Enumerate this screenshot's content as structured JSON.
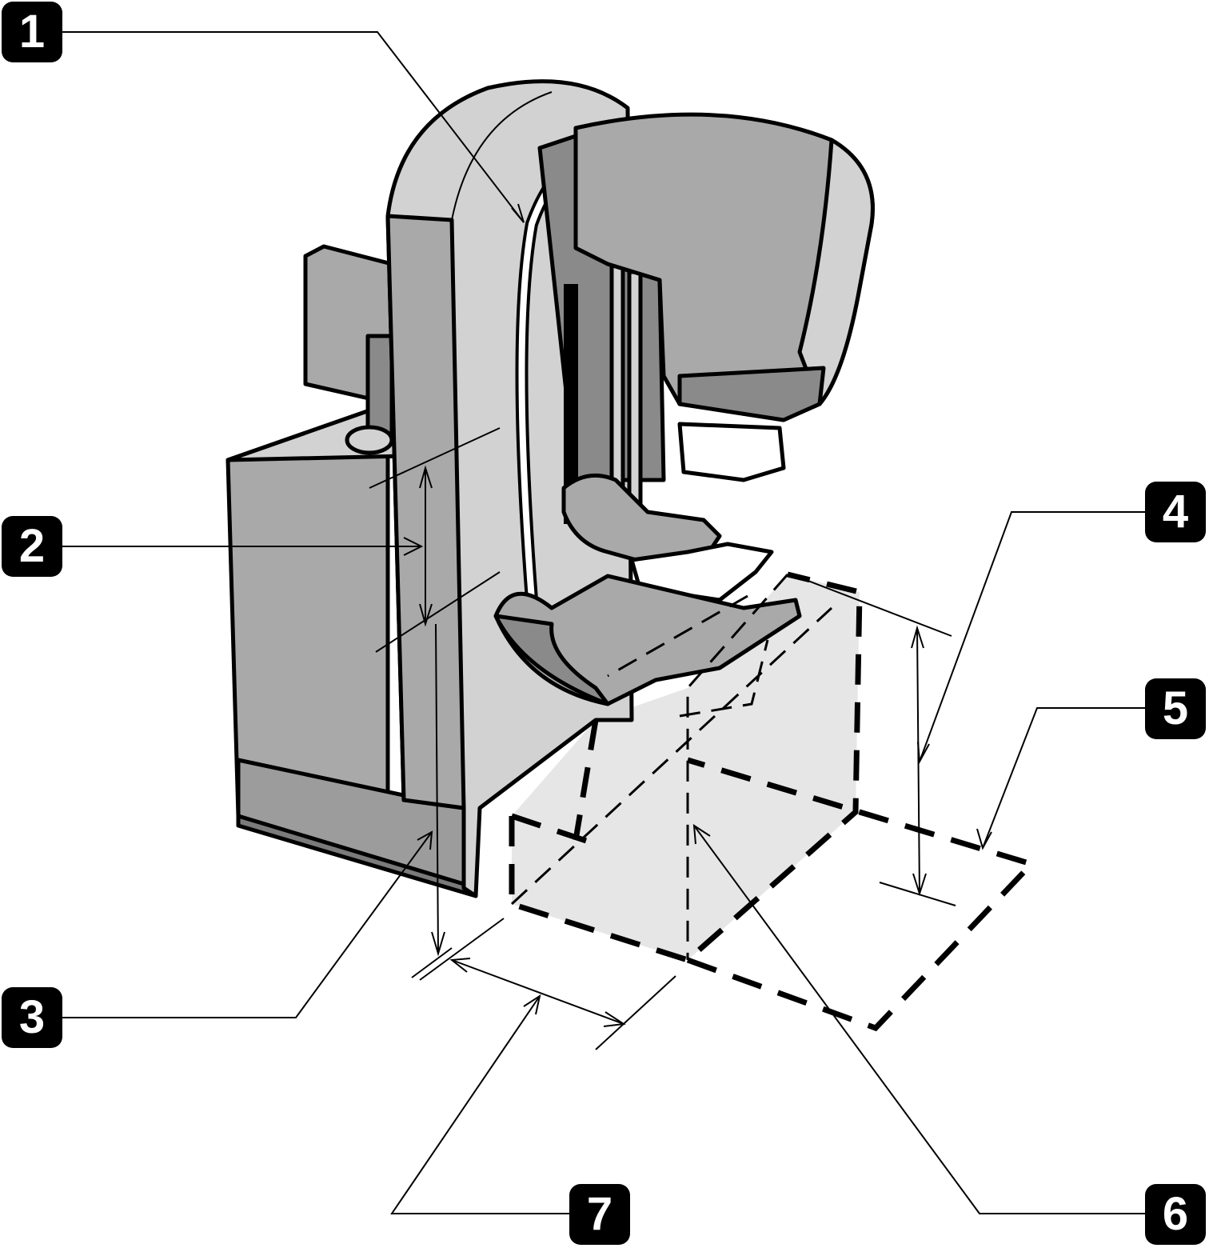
{
  "callouts": [
    {
      "id": "1",
      "label": "1"
    },
    {
      "id": "2",
      "label": "2"
    },
    {
      "id": "3",
      "label": "3"
    },
    {
      "id": "4",
      "label": "4"
    },
    {
      "id": "5",
      "label": "5"
    },
    {
      "id": "6",
      "label": "6"
    },
    {
      "id": "7",
      "label": "7"
    }
  ],
  "colors": {
    "body_light": "#d2d2d2",
    "body_mid": "#a9a9a9",
    "body_dark": "#8a8a8a",
    "base_strip": "#7a7a7a",
    "clearance_zone": "#e6e6e6",
    "callout_bg": "#000000",
    "callout_text": "#ffffff"
  }
}
